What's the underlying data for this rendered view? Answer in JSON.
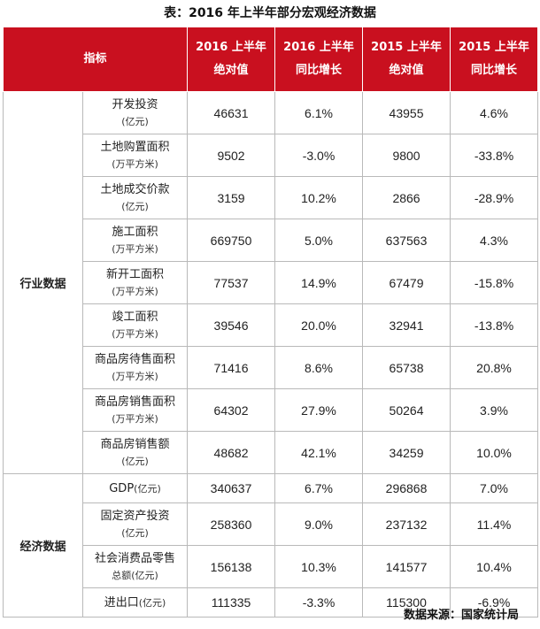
{
  "title": "表：2016 年上半年部分宏观经济数据",
  "headers": {
    "indicator": "指标",
    "col1": [
      "2016 上半年",
      "绝对值"
    ],
    "col2": [
      "2016 上半年",
      "同比增长"
    ],
    "col3": [
      "2015 上半年",
      "绝对值"
    ],
    "col4": [
      "2015 上半年",
      "同比增长"
    ]
  },
  "groups": {
    "industry": "行业数据",
    "economy": "经济数据"
  },
  "rows": [
    {
      "name": "开发投资",
      "unit": "(亿元)",
      "v2016": "46631",
      "g2016": "6.1%",
      "v2015": "43955",
      "g2015": "4.6%"
    },
    {
      "name": "土地购置面积",
      "unit": "(万平方米)",
      "v2016": "9502",
      "g2016": "-3.0%",
      "v2015": "9800",
      "g2015": "-33.8%"
    },
    {
      "name": "土地成交价款",
      "unit": "(亿元)",
      "v2016": "3159",
      "g2016": "10.2%",
      "v2015": "2866",
      "g2015": "-28.9%"
    },
    {
      "name": "施工面积",
      "unit": "(万平方米)",
      "v2016": "669750",
      "g2016": "5.0%",
      "v2015": "637563",
      "g2015": "4.3%"
    },
    {
      "name": "新开工面积",
      "unit": "(万平方米)",
      "v2016": "77537",
      "g2016": "14.9%",
      "v2015": "67479",
      "g2015": "-15.8%"
    },
    {
      "name": "竣工面积",
      "unit": "(万平方米)",
      "v2016": "39546",
      "g2016": "20.0%",
      "v2015": "32941",
      "g2015": "-13.8%"
    },
    {
      "name": "商品房待售面积",
      "unit": "(万平方米)",
      "v2016": "71416",
      "g2016": "8.6%",
      "v2015": "65738",
      "g2015": "20.8%"
    },
    {
      "name": "商品房销售面积",
      "unit": "(万平方米)",
      "v2016": "64302",
      "g2016": "27.9%",
      "v2015": "50264",
      "g2015": "3.9%"
    },
    {
      "name": "商品房销售额",
      "unit": "(亿元)",
      "v2016": "48682",
      "g2016": "42.1%",
      "v2015": "34259",
      "g2015": "10.0%"
    },
    {
      "name": "GDP",
      "unit": "(亿元)",
      "v2016": "340637",
      "g2016": "6.7%",
      "v2015": "296868",
      "g2015": "7.0%"
    },
    {
      "name": "固定资产投资",
      "unit": "(亿元)",
      "v2016": "258360",
      "g2016": "9.0%",
      "v2015": "237132",
      "g2015": "11.4%"
    },
    {
      "name": "社会消费品零售",
      "unit": "总额(亿元)",
      "v2016": "156138",
      "g2016": "10.3%",
      "v2015": "141577",
      "g2015": "10.4%"
    },
    {
      "name": "进出口",
      "unit": "(亿元)",
      "v2016": "111335",
      "g2016": "-3.3%",
      "v2015": "115300",
      "g2015": "-6.9%"
    }
  ],
  "source": "数据来源：国家统计局"
}
